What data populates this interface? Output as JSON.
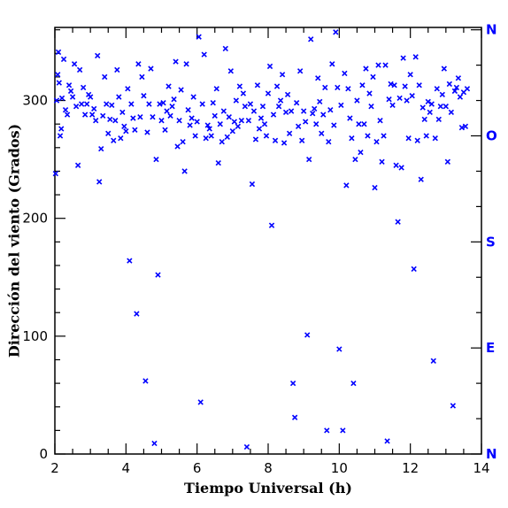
{
  "chart_data": {
    "type": "scatter",
    "xlabel": "Tiempo Universal (h)",
    "ylabel": "Dirección del viento (Grados)",
    "xlim": [
      2,
      14
    ],
    "ylim": [
      0,
      362
    ],
    "x_ticks": [
      2,
      4,
      6,
      8,
      10,
      12,
      14
    ],
    "y_ticks": [
      0,
      100,
      200,
      300
    ],
    "right_axis_labels": [
      {
        "label": "N",
        "value": 0
      },
      {
        "label": "E",
        "value": 90
      },
      {
        "label": "S",
        "value": 180
      },
      {
        "label": "O",
        "value": 270
      },
      {
        "label": "N",
        "value": 360
      }
    ],
    "marker": "x",
    "color": "#0000ff",
    "grid": false,
    "points": [
      [
        2.02,
        238
      ],
      [
        2.05,
        300
      ],
      [
        2.08,
        322
      ],
      [
        2.1,
        341
      ],
      [
        2.12,
        315
      ],
      [
        2.15,
        270
      ],
      [
        2.18,
        276
      ],
      [
        2.2,
        302
      ],
      [
        2.25,
        335
      ],
      [
        2.3,
        292
      ],
      [
        2.35,
        288
      ],
      [
        2.4,
        313
      ],
      [
        2.45,
        308
      ],
      [
        2.5,
        303
      ],
      [
        2.55,
        331
      ],
      [
        2.6,
        295
      ],
      [
        2.65,
        245
      ],
      [
        2.7,
        326
      ],
      [
        2.75,
        297
      ],
      [
        2.8,
        311
      ],
      [
        2.85,
        288
      ],
      [
        2.9,
        297
      ],
      [
        2.95,
        305
      ],
      [
        3.0,
        303
      ],
      [
        3.05,
        288
      ],
      [
        3.1,
        293
      ],
      [
        3.15,
        283
      ],
      [
        3.2,
        338
      ],
      [
        3.25,
        231
      ],
      [
        3.3,
        259
      ],
      [
        3.35,
        287
      ],
      [
        3.4,
        320
      ],
      [
        3.45,
        297
      ],
      [
        3.5,
        272
      ],
      [
        3.55,
        284
      ],
      [
        3.6,
        296
      ],
      [
        3.65,
        266
      ],
      [
        3.7,
        283
      ],
      [
        3.75,
        326
      ],
      [
        3.8,
        303
      ],
      [
        3.85,
        268
      ],
      [
        3.9,
        290
      ],
      [
        3.95,
        278
      ],
      [
        4.0,
        274
      ],
      [
        4.05,
        310
      ],
      [
        4.1,
        164
      ],
      [
        4.15,
        297
      ],
      [
        4.2,
        285
      ],
      [
        4.25,
        275
      ],
      [
        4.3,
        119
      ],
      [
        4.35,
        331
      ],
      [
        4.4,
        286
      ],
      [
        4.45,
        320
      ],
      [
        4.5,
        304
      ],
      [
        4.55,
        62
      ],
      [
        4.6,
        273
      ],
      [
        4.65,
        297
      ],
      [
        4.7,
        327
      ],
      [
        4.75,
        286
      ],
      [
        4.8,
        9
      ],
      [
        4.85,
        250
      ],
      [
        4.9,
        152
      ],
      [
        4.95,
        297
      ],
      [
        5.0,
        283
      ],
      [
        5.05,
        298
      ],
      [
        5.1,
        275
      ],
      [
        5.15,
        291
      ],
      [
        5.2,
        312
      ],
      [
        5.25,
        287
      ],
      [
        5.3,
        295
      ],
      [
        5.35,
        301
      ],
      [
        5.4,
        333
      ],
      [
        5.45,
        261
      ],
      [
        5.5,
        283
      ],
      [
        5.55,
        309
      ],
      [
        5.6,
        265
      ],
      [
        5.65,
        240
      ],
      [
        5.7,
        331
      ],
      [
        5.75,
        292
      ],
      [
        5.8,
        279
      ],
      [
        5.85,
        285
      ],
      [
        5.9,
        303
      ],
      [
        5.95,
        270
      ],
      [
        6.0,
        282
      ],
      [
        6.05,
        354
      ],
      [
        6.1,
        44
      ],
      [
        6.15,
        297
      ],
      [
        6.2,
        339
      ],
      [
        6.25,
        268
      ],
      [
        6.3,
        279
      ],
      [
        6.35,
        276
      ],
      [
        6.4,
        270
      ],
      [
        6.45,
        298
      ],
      [
        6.5,
        287
      ],
      [
        6.55,
        310
      ],
      [
        6.6,
        247
      ],
      [
        6.65,
        280
      ],
      [
        6.7,
        265
      ],
      [
        6.75,
        291
      ],
      [
        6.8,
        344
      ],
      [
        6.85,
        269
      ],
      [
        6.9,
        286
      ],
      [
        6.95,
        325
      ],
      [
        7.0,
        274
      ],
      [
        7.05,
        282
      ],
      [
        7.1,
        300
      ],
      [
        7.15,
        278
      ],
      [
        7.2,
        312
      ],
      [
        7.25,
        283
      ],
      [
        7.3,
        306
      ],
      [
        7.35,
        295
      ],
      [
        7.4,
        6
      ],
      [
        7.45,
        283
      ],
      [
        7.5,
        297
      ],
      [
        7.55,
        229
      ],
      [
        7.6,
        291
      ],
      [
        7.65,
        267
      ],
      [
        7.7,
        313
      ],
      [
        7.75,
        276
      ],
      [
        7.8,
        285
      ],
      [
        7.85,
        295
      ],
      [
        7.9,
        280
      ],
      [
        7.95,
        270
      ],
      [
        8.0,
        306
      ],
      [
        8.05,
        329
      ],
      [
        8.1,
        194
      ],
      [
        8.15,
        288
      ],
      [
        8.2,
        266
      ],
      [
        8.25,
        312
      ],
      [
        8.3,
        295
      ],
      [
        8.35,
        300
      ],
      [
        8.4,
        322
      ],
      [
        8.45,
        264
      ],
      [
        8.5,
        290
      ],
      [
        8.55,
        305
      ],
      [
        8.6,
        272
      ],
      [
        8.65,
        291
      ],
      [
        8.7,
        60
      ],
      [
        8.75,
        31
      ],
      [
        8.8,
        298
      ],
      [
        8.85,
        278
      ],
      [
        8.9,
        325
      ],
      [
        8.95,
        266
      ],
      [
        9.0,
        291
      ],
      [
        9.05,
        282
      ],
      [
        9.1,
        101
      ],
      [
        9.15,
        250
      ],
      [
        9.2,
        352
      ],
      [
        9.25,
        289
      ],
      [
        9.3,
        293
      ],
      [
        9.35,
        280
      ],
      [
        9.4,
        319
      ],
      [
        9.45,
        299
      ],
      [
        9.5,
        272
      ],
      [
        9.55,
        288
      ],
      [
        9.6,
        311
      ],
      [
        9.65,
        20
      ],
      [
        9.7,
        265
      ],
      [
        9.75,
        292
      ],
      [
        9.8,
        331
      ],
      [
        9.85,
        279
      ],
      [
        9.9,
        358
      ],
      [
        9.95,
        311
      ],
      [
        10.0,
        89
      ],
      [
        10.05,
        296
      ],
      [
        10.1,
        20
      ],
      [
        10.15,
        323
      ],
      [
        10.2,
        228
      ],
      [
        10.25,
        310
      ],
      [
        10.3,
        285
      ],
      [
        10.35,
        268
      ],
      [
        10.4,
        60
      ],
      [
        10.45,
        250
      ],
      [
        10.5,
        300
      ],
      [
        10.55,
        280
      ],
      [
        10.6,
        256
      ],
      [
        10.65,
        313
      ],
      [
        10.7,
        280
      ],
      [
        10.75,
        327
      ],
      [
        10.8,
        270
      ],
      [
        10.85,
        306
      ],
      [
        10.9,
        295
      ],
      [
        10.95,
        320
      ],
      [
        11.0,
        226
      ],
      [
        11.05,
        265
      ],
      [
        11.1,
        330
      ],
      [
        11.15,
        283
      ],
      [
        11.2,
        248
      ],
      [
        11.25,
        270
      ],
      [
        11.3,
        330
      ],
      [
        11.35,
        11
      ],
      [
        11.4,
        301
      ],
      [
        11.45,
        314
      ],
      [
        11.5,
        296
      ],
      [
        11.55,
        313
      ],
      [
        11.6,
        245
      ],
      [
        11.65,
        197
      ],
      [
        11.7,
        302
      ],
      [
        11.75,
        243
      ],
      [
        11.8,
        336
      ],
      [
        11.85,
        312
      ],
      [
        11.9,
        300
      ],
      [
        11.95,
        268
      ],
      [
        12.0,
        322
      ],
      [
        12.05,
        304
      ],
      [
        12.1,
        157
      ],
      [
        12.15,
        337
      ],
      [
        12.2,
        266
      ],
      [
        12.25,
        313
      ],
      [
        12.3,
        233
      ],
      [
        12.35,
        294
      ],
      [
        12.4,
        284
      ],
      [
        12.45,
        270
      ],
      [
        12.5,
        299
      ],
      [
        12.55,
        290
      ],
      [
        12.6,
        297
      ],
      [
        12.65,
        79
      ],
      [
        12.7,
        268
      ],
      [
        12.75,
        310
      ],
      [
        12.8,
        284
      ],
      [
        12.85,
        295
      ],
      [
        12.9,
        305
      ],
      [
        12.95,
        327
      ],
      [
        13.0,
        295
      ],
      [
        13.05,
        248
      ],
      [
        13.1,
        314
      ],
      [
        13.15,
        290
      ],
      [
        13.2,
        41
      ],
      [
        13.25,
        308
      ],
      [
        13.3,
        311
      ],
      [
        13.35,
        319
      ],
      [
        13.4,
        303
      ],
      [
        13.45,
        277
      ],
      [
        13.5,
        307
      ],
      [
        13.55,
        278
      ],
      [
        13.6,
        310
      ]
    ]
  }
}
